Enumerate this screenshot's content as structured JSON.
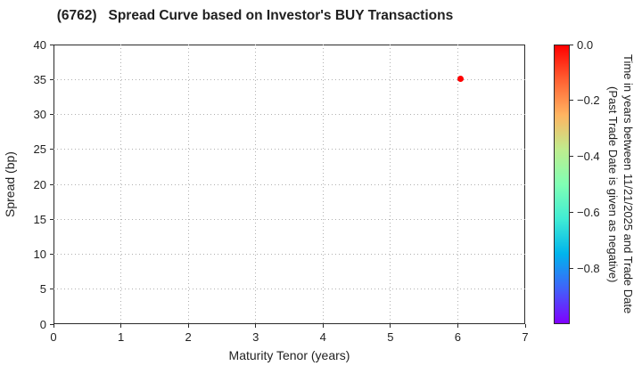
{
  "chart_data": {
    "type": "scatter",
    "title": "(6762)   Spread Curve based on Investor's BUY Transactions",
    "xlabel": "Maturity Tenor (years)",
    "ylabel": "Spread (bp)",
    "xlim": [
      0,
      7
    ],
    "ylim": [
      0,
      40
    ],
    "grid": true,
    "xticks": {
      "values": [
        0,
        1,
        2,
        3,
        4,
        5,
        6,
        7
      ],
      "labels": [
        "0",
        "1",
        "2",
        "3",
        "4",
        "5",
        "6",
        "7"
      ]
    },
    "yticks": {
      "values": [
        0,
        5,
        10,
        15,
        20,
        25,
        30,
        35,
        40
      ],
      "labels": [
        "0",
        "5",
        "10",
        "15",
        "20",
        "25",
        "30",
        "35",
        "40"
      ]
    },
    "series": [
      {
        "name": "investor-buy-transactions",
        "marker": "circle",
        "points": [
          {
            "x": 6.04,
            "y": 35.1,
            "color": "#ff0000"
          }
        ]
      }
    ],
    "colorbar": {
      "label_line1": "Time in years between 11/21/2025 and Trade Date",
      "label_line2": "(Past Trade Date is given as negative)",
      "colormap": "rainbow",
      "vmax": 0.0,
      "vmin": -1.0,
      "ticks": {
        "values": [
          0.0,
          -0.2,
          -0.4,
          -0.6,
          -0.8
        ],
        "labels": [
          "0.0",
          "−0.2",
          "−0.4",
          "−0.6",
          "−0.8"
        ]
      },
      "gradient_stops": [
        "#ff0000",
        "#ff6132",
        "#ffb461",
        "#bfec8e",
        "#80ffb4",
        "#40ecd4",
        "#00b4ec",
        "#4062fa",
        "#8000ff"
      ]
    },
    "colors": {
      "text": "#1f1f1f",
      "spine": "#2b2b2b",
      "grid": "#b0b0b0",
      "background": "#ffffff"
    }
  }
}
